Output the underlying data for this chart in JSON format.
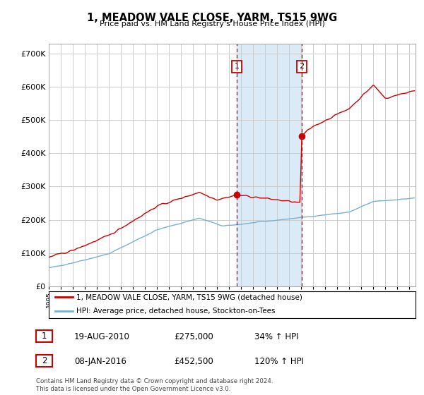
{
  "title": "1, MEADOW VALE CLOSE, YARM, TS15 9WG",
  "subtitle": "Price paid vs. HM Land Registry's House Price Index (HPI)",
  "ylabel_ticks": [
    "£0",
    "£100K",
    "£200K",
    "£300K",
    "£400K",
    "£500K",
    "£600K",
    "£700K"
  ],
  "ytick_values": [
    0,
    100000,
    200000,
    300000,
    400000,
    500000,
    600000,
    700000
  ],
  "ylim": [
    0,
    730000
  ],
  "xlim_start": 1995.0,
  "xlim_end": 2025.5,
  "transaction1": {
    "date_x": 2010.63,
    "price": 275000,
    "label": "1"
  },
  "transaction2": {
    "date_x": 2016.03,
    "price": 452500,
    "label": "2"
  },
  "shaded_region": [
    2010.63,
    2016.03
  ],
  "legend_line1": "1, MEADOW VALE CLOSE, YARM, TS15 9WG (detached house)",
  "legend_line2": "HPI: Average price, detached house, Stockton-on-Tees",
  "table_row1": [
    "1",
    "19-AUG-2010",
    "£275,000",
    "34% ↑ HPI"
  ],
  "table_row2": [
    "2",
    "08-JAN-2016",
    "£452,500",
    "120% ↑ HPI"
  ],
  "footer": "Contains HM Land Registry data © Crown copyright and database right 2024.\nThis data is licensed under the Open Government Licence v3.0.",
  "line_color_red": "#cc0000",
  "line_color_blue": "#7aafd4",
  "shaded_color": "#daeaf7",
  "grid_color": "#cccccc",
  "background_color": "#ffffff"
}
